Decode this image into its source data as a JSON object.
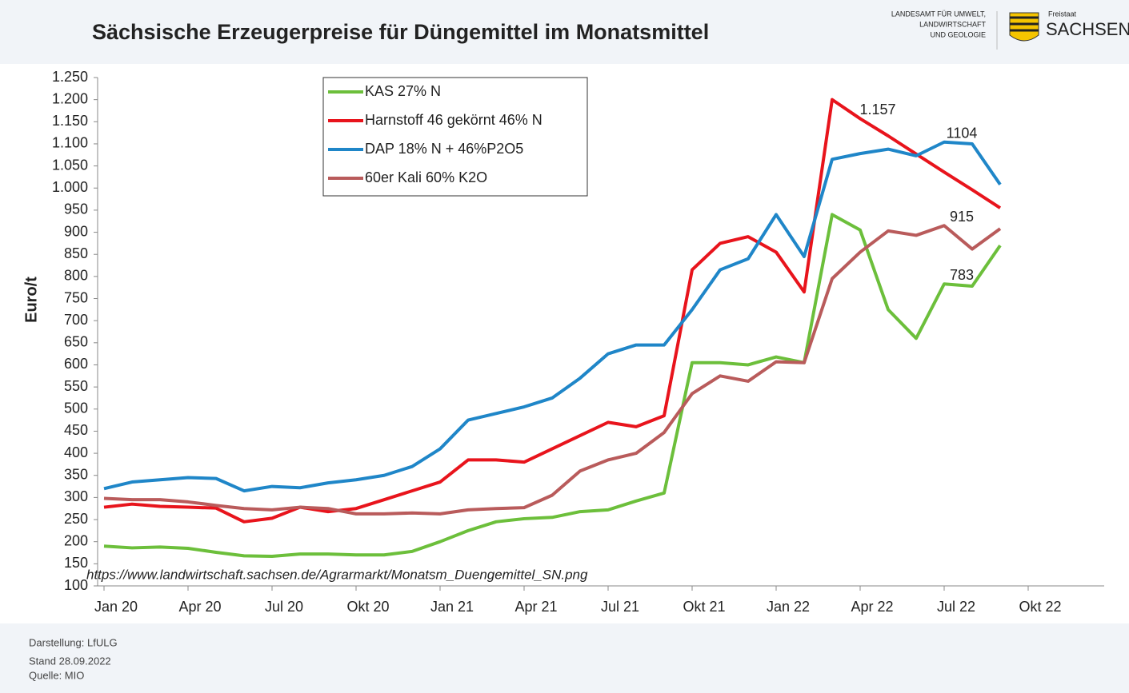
{
  "chart_data": {
    "type": "line",
    "title": "Sächsische Erzeugerpreise für Düngemittel im Monatsmittel",
    "ylabel": "Euro/t",
    "logo_text": [
      "LANDESAMT FÜR UMWELT,",
      "LANDWIRTSCHAFT",
      "UND GEOLOGIE"
    ],
    "logo_state": [
      "Freistaat",
      "SACHSEN"
    ],
    "url": "https://www.landwirtschaft.sachsen.de/Agrarmarkt/Monatsm_Duengemittel_SN.png",
    "footer": [
      "Darstellung: LfULG",
      "Stand 28.09.2022",
      "Quelle: MIO"
    ],
    "categories": [
      "Jan 20",
      null,
      null,
      "Apr 20",
      null,
      null,
      "Jul 20",
      null,
      null,
      "Okt 20",
      null,
      null,
      "Jan 21",
      null,
      null,
      "Apr 21",
      null,
      null,
      "Jul 21",
      null,
      null,
      "Okt 21",
      null,
      null,
      "Jan 22",
      null,
      null,
      "Apr 22",
      null,
      null,
      "Jul 22",
      null,
      null,
      "Okt 22"
    ],
    "series": [
      {
        "name": "KAS 27% N",
        "color": "#6cbf3b",
        "values": [
          190,
          186,
          188,
          185,
          176,
          168,
          167,
          172,
          172,
          170,
          170,
          178,
          200,
          225,
          245,
          252,
          255,
          268,
          272,
          292,
          310,
          605,
          605,
          600,
          618,
          605,
          940,
          905,
          725,
          660,
          783,
          778,
          870,
          null
        ],
        "value_labels": [
          null,
          null,
          null,
          null,
          null,
          null,
          null,
          null,
          null,
          null,
          null,
          null,
          null,
          null,
          null,
          null,
          null,
          null,
          null,
          null,
          null,
          null,
          null,
          null,
          null,
          null,
          null,
          null,
          null,
          null,
          "783",
          null,
          null,
          null
        ]
      },
      {
        "name": "Harnstoff 46 gekörnt 46% N",
        "color": "#e8141c",
        "values": [
          278,
          285,
          280,
          278,
          276,
          245,
          253,
          278,
          268,
          275,
          295,
          315,
          335,
          385,
          385,
          380,
          410,
          440,
          470,
          460,
          485,
          815,
          875,
          890,
          855,
          765,
          1200,
          1157,
          1118,
          1077,
          1036,
          996,
          955,
          null
        ],
        "value_labels": [
          null,
          null,
          null,
          null,
          null,
          null,
          null,
          null,
          null,
          null,
          null,
          null,
          null,
          null,
          null,
          null,
          null,
          null,
          null,
          null,
          null,
          null,
          null,
          null,
          null,
          null,
          null,
          "1.157",
          null,
          null,
          null,
          null,
          null,
          null
        ]
      },
      {
        "name": "DAP 18% N + 46%P2O5",
        "color": "#1f86c8",
        "values": [
          320,
          335,
          340,
          345,
          343,
          315,
          325,
          322,
          333,
          340,
          350,
          370,
          410,
          475,
          490,
          505,
          525,
          570,
          625,
          645,
          645,
          725,
          815,
          840,
          940,
          845,
          1065,
          1078,
          1088,
          1073,
          1104,
          1100,
          1008,
          null
        ],
        "value_labels": [
          null,
          null,
          null,
          null,
          null,
          null,
          null,
          null,
          null,
          null,
          null,
          null,
          null,
          null,
          null,
          null,
          null,
          null,
          null,
          null,
          null,
          null,
          null,
          null,
          null,
          null,
          null,
          null,
          null,
          null,
          "1104",
          null,
          null,
          null
        ]
      },
      {
        "name": "60er Kali 60% K2O",
        "color": "#b95b5b",
        "values": [
          298,
          295,
          295,
          290,
          282,
          275,
          272,
          278,
          275,
          263,
          263,
          265,
          263,
          272,
          275,
          277,
          305,
          360,
          385,
          400,
          447,
          535,
          575,
          563,
          607,
          605,
          795,
          855,
          903,
          893,
          915,
          862,
          908,
          null
        ],
        "value_labels": [
          null,
          null,
          null,
          null,
          null,
          null,
          null,
          null,
          null,
          null,
          null,
          null,
          null,
          null,
          null,
          null,
          null,
          null,
          null,
          null,
          null,
          null,
          null,
          null,
          null,
          null,
          null,
          null,
          null,
          null,
          "915",
          null,
          null,
          null
        ]
      }
    ],
    "ylim": [
      100,
      1250
    ],
    "yticks": [
      100,
      150,
      200,
      250,
      300,
      350,
      400,
      450,
      500,
      550,
      600,
      650,
      700,
      750,
      800,
      850,
      900,
      950,
      {
        "value": 1000,
        "label": "1.000"
      },
      {
        "value": 1050,
        "label": "1.050"
      },
      {
        "value": 1100,
        "label": "1.100"
      },
      {
        "value": 1150,
        "label": "1.150"
      },
      {
        "value": 1200,
        "label": "1.200"
      },
      {
        "value": 1250,
        "label": "1.250"
      }
    ],
    "grid": false
  }
}
